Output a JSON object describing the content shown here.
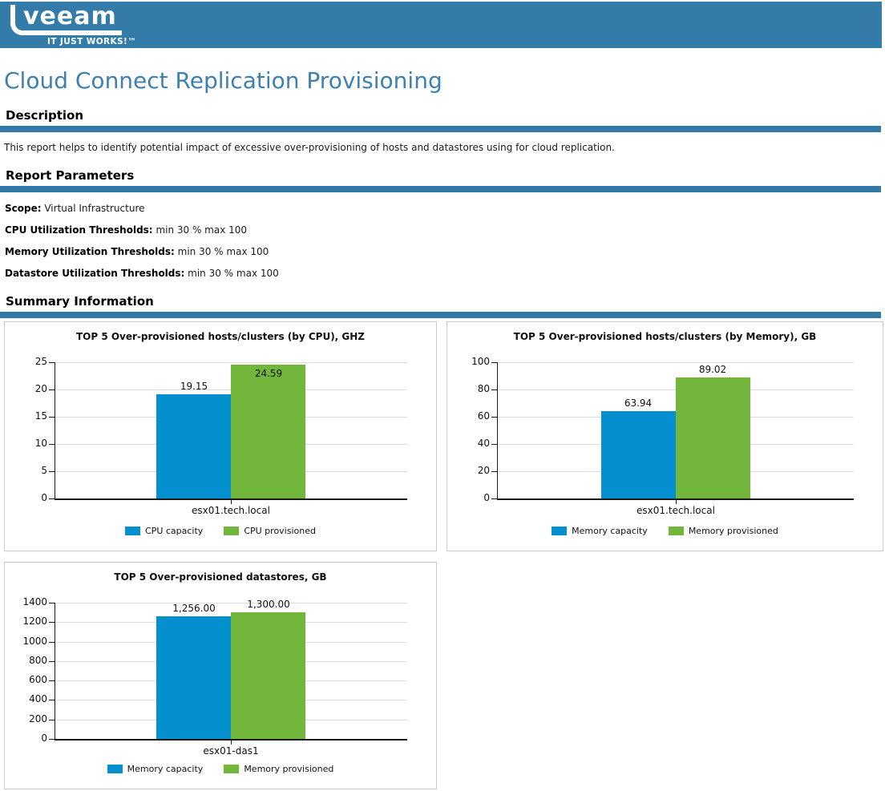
{
  "header": {
    "logo_text": "veeam",
    "logo_tagline": "IT JUST WORKS!™"
  },
  "page_title": "Cloud Connect Replication Provisioning",
  "sections": {
    "description": {
      "heading": "Description",
      "text": "This report helps to identify potential impact of excessive over-provisioning of hosts and datastores using for cloud replication."
    },
    "report_parameters": {
      "heading": "Report Parameters",
      "parameters": [
        {
          "label": "Scope:",
          "value": "Virtual Infrastructure"
        },
        {
          "label": "CPU Utilization Thresholds:",
          "value": "min 30 % max 100"
        },
        {
          "label": "Memory Utilization Thresholds:",
          "value": "min 30 % max 100"
        },
        {
          "label": "Datastore Utilization Thresholds:",
          "value": "min 30 % max 100"
        }
      ]
    },
    "summary": {
      "heading": "Summary Information"
    }
  },
  "colors": {
    "header_bg": "#337ba9",
    "divider": "#3179a7",
    "title_text": "#3e80af",
    "bar_blue": "#0490ce",
    "bar_green": "#72b63c"
  },
  "chart_data": [
    {
      "type": "bar",
      "title": "TOP 5 Over-provisioned hosts/clusters (by CPU), GHZ",
      "categories": [
        "esx01.tech.local"
      ],
      "series": [
        {
          "name": "CPU capacity",
          "color": "#0490ce",
          "values": [
            19.15
          ],
          "labels": [
            "19.15"
          ]
        },
        {
          "name": "CPU provisioned",
          "color": "#72b63c",
          "values": [
            24.59
          ],
          "labels": [
            "24.59"
          ]
        }
      ],
      "ylim": [
        0,
        25
      ],
      "ytick_step": 5,
      "grid": true,
      "legend_position": "bottom"
    },
    {
      "type": "bar",
      "title": "TOP 5 Over-provisioned hosts/clusters (by Memory), GB",
      "categories": [
        "esx01.tech.local"
      ],
      "series": [
        {
          "name": "Memory capacity",
          "color": "#0490ce",
          "values": [
            63.94
          ],
          "labels": [
            "63.94"
          ]
        },
        {
          "name": "Memory provisioned",
          "color": "#72b63c",
          "values": [
            89.02
          ],
          "labels": [
            "89.02"
          ]
        }
      ],
      "ylim": [
        0,
        100
      ],
      "ytick_step": 20,
      "grid": true,
      "legend_position": "bottom"
    },
    {
      "type": "bar",
      "title": "TOP 5 Over-provisioned datastores, GB",
      "categories": [
        "esx01-das1"
      ],
      "series": [
        {
          "name": "Memory capacity",
          "color": "#0490ce",
          "values": [
            1256
          ],
          "labels": [
            "1,256.00"
          ]
        },
        {
          "name": "Memory provisioned",
          "color": "#72b63c",
          "values": [
            1300
          ],
          "labels": [
            "1,300.00"
          ]
        }
      ],
      "ylim": [
        0,
        1400
      ],
      "ytick_step": 200,
      "grid": true,
      "legend_position": "bottom"
    }
  ]
}
